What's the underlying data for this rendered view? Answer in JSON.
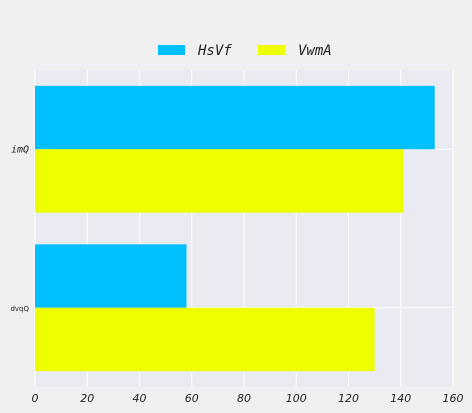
{
  "chart_data": {
    "type": "bar",
    "orientation": "horizontal",
    "categories": [
      "imQ",
      "dvqQ"
    ],
    "series": [
      {
        "name": "HsVf",
        "values": [
          153,
          58
        ],
        "color": "#00bfff"
      },
      {
        "name": "VwmA",
        "values": [
          141,
          130
        ],
        "color": "#eeff00"
      }
    ],
    "x_ticks": [
      "0",
      "20",
      "40",
      "60",
      "80",
      "100",
      "120",
      "140",
      "160"
    ],
    "xlim": [
      0,
      160
    ],
    "xlabel": "",
    "ylabel": "",
    "title": "",
    "grid": true,
    "legend_position": "top-center",
    "plot_background": "#eaeaf2",
    "page_background": "#f0f0f0"
  }
}
